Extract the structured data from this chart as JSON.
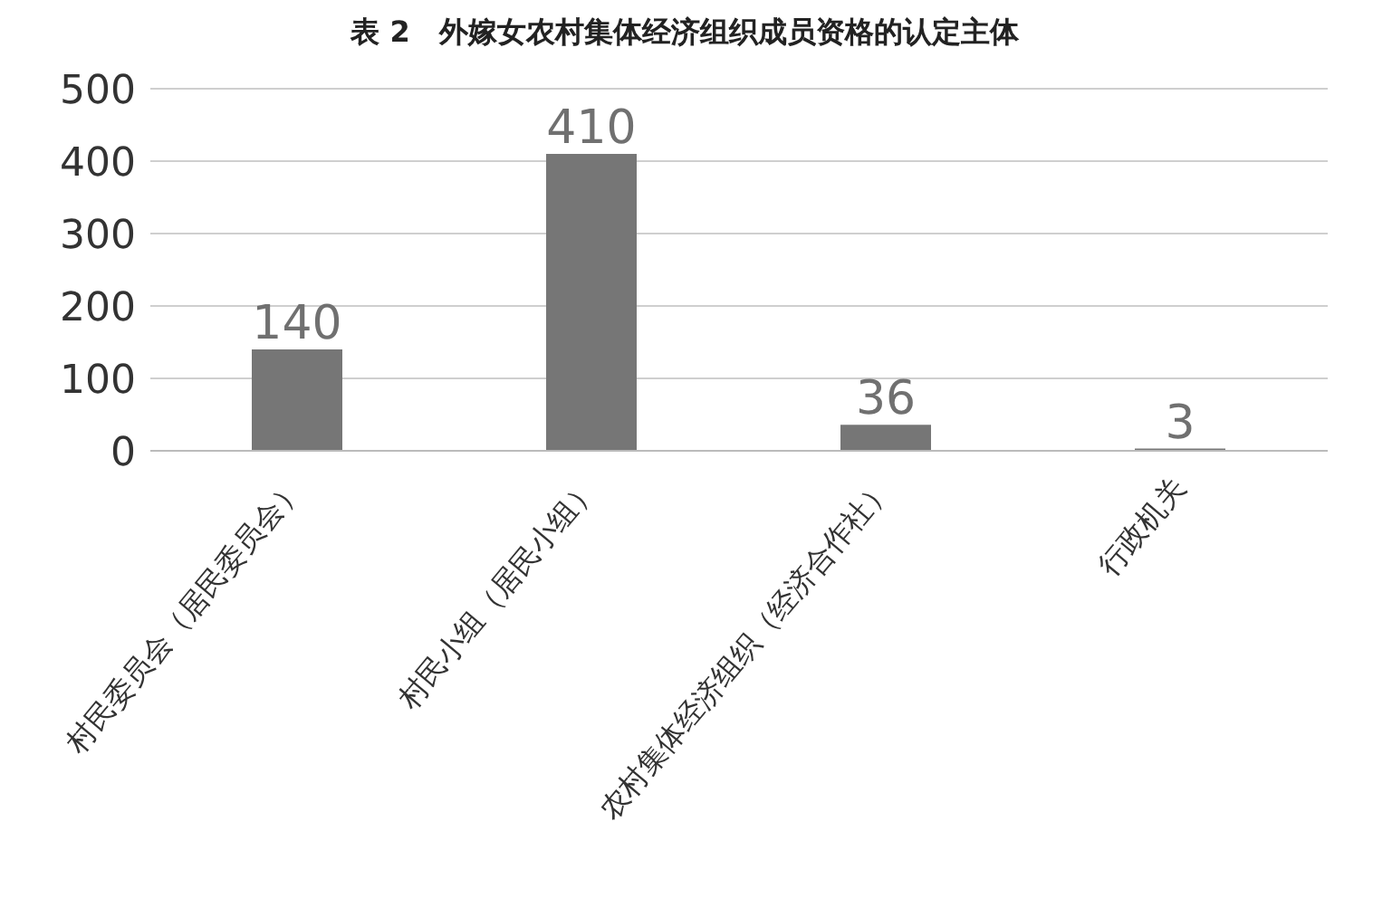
{
  "chart_data": {
    "type": "bar",
    "title": "表 2　外嫁女农村集体经济组织成员资格的认定主体",
    "categories": [
      "村民委员会（居民委员会）",
      "村民小组（居民小组）",
      "农村集体经济组织（经济合作社）",
      "行政机关"
    ],
    "values": [
      140,
      410,
      36,
      3
    ],
    "color": "#767676",
    "ylim": [
      0,
      500
    ],
    "yticks": [
      0,
      100,
      200,
      300,
      400,
      500
    ],
    "grid": "y",
    "data_labels": true
  }
}
